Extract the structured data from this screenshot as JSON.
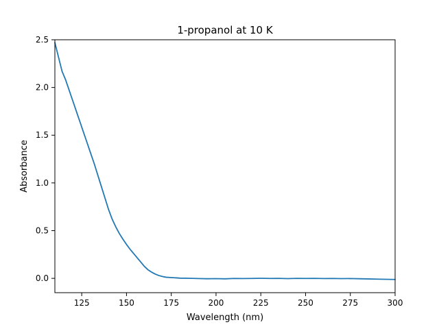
{
  "chart_data": {
    "type": "line",
    "title": "1-propanol at 10 K",
    "xlabel": "Wavelength (nm)",
    "ylabel": "Absorbance",
    "xlim": [
      110,
      300
    ],
    "ylim": [
      -0.15,
      2.5
    ],
    "xticks": [
      125,
      150,
      175,
      200,
      225,
      250,
      275,
      300
    ],
    "yticks": [
      0.0,
      0.5,
      1.0,
      1.5,
      2.0,
      2.5
    ],
    "xtick_labels": [
      "125",
      "150",
      "175",
      "200",
      "225",
      "250",
      "275",
      "300"
    ],
    "ytick_labels": [
      "0.0",
      "0.5",
      "1.0",
      "1.5",
      "2.0",
      "2.5"
    ],
    "grid": false,
    "series": [
      {
        "color": "#1f77b4",
        "x": [
          110,
          112,
          114,
          116,
          118,
          120,
          122,
          124,
          126,
          128,
          130,
          132,
          134,
          136,
          138,
          140,
          142,
          144,
          146,
          148,
          150,
          152,
          154,
          156,
          158,
          160,
          162,
          164,
          166,
          168,
          170,
          172,
          175,
          178,
          180,
          185,
          190,
          195,
          200,
          205,
          210,
          215,
          220,
          225,
          230,
          235,
          240,
          245,
          250,
          255,
          260,
          265,
          270,
          275,
          280,
          285,
          290,
          295,
          300
        ],
        "y": [
          2.47,
          2.32,
          2.17,
          2.08,
          1.97,
          1.86,
          1.75,
          1.64,
          1.53,
          1.42,
          1.31,
          1.2,
          1.08,
          0.96,
          0.84,
          0.72,
          0.62,
          0.54,
          0.47,
          0.41,
          0.355,
          0.305,
          0.26,
          0.215,
          0.17,
          0.125,
          0.09,
          0.065,
          0.045,
          0.03,
          0.02,
          0.012,
          0.008,
          0.005,
          0.002,
          0.001,
          -0.002,
          -0.004,
          -0.003,
          -0.005,
          -0.001,
          -0.002,
          -0.001,
          0.001,
          -0.001,
          0.0,
          -0.003,
          0.0,
          -0.001,
          0.0,
          -0.002,
          -0.001,
          -0.003,
          -0.002,
          -0.004,
          -0.006,
          -0.008,
          -0.01,
          -0.012
        ]
      }
    ]
  }
}
